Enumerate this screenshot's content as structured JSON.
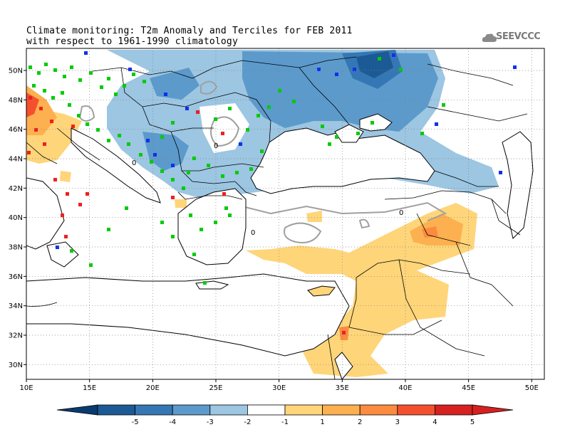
{
  "title": {
    "line1": "Climate monitoring: T2m Anomaly and Terciles for FEB 2011",
    "line2": "with respect to 1961-1990 climatology"
  },
  "logo": {
    "text": "SEEVCCC",
    "icon": "cloud-icon"
  },
  "map": {
    "lon_range": [
      10,
      51
    ],
    "lat_range": [
      29,
      51.5
    ],
    "lon_ticks": [
      {
        "v": 10,
        "label": "10E"
      },
      {
        "v": 15,
        "label": "15E"
      },
      {
        "v": 20,
        "label": "20E"
      },
      {
        "v": 25,
        "label": "25E"
      },
      {
        "v": 30,
        "label": "30E"
      },
      {
        "v": 35,
        "label": "35E"
      },
      {
        "v": 40,
        "label": "40E"
      },
      {
        "v": 45,
        "label": "45E"
      },
      {
        "v": 50,
        "label": "50E"
      }
    ],
    "lat_ticks": [
      {
        "v": 30,
        "label": "30N"
      },
      {
        "v": 32,
        "label": "32N"
      },
      {
        "v": 34,
        "label": "34N"
      },
      {
        "v": 36,
        "label": "36N"
      },
      {
        "v": 38,
        "label": "38N"
      },
      {
        "v": 40,
        "label": "40N"
      },
      {
        "v": 42,
        "label": "42N"
      },
      {
        "v": 44,
        "label": "44N"
      },
      {
        "v": 46,
        "label": "46N"
      },
      {
        "v": 48,
        "label": "48N"
      },
      {
        "v": 50,
        "label": "50N"
      }
    ],
    "contour_label": "0"
  },
  "colorbar": {
    "levels": [
      {
        "label": "-5",
        "color": "#1c5a95"
      },
      {
        "label": "-4",
        "color": "#3577b4"
      },
      {
        "label": "-3",
        "color": "#5c9acb"
      },
      {
        "label": "-2",
        "color": "#9cc6e2"
      },
      {
        "label": "-1",
        "color": "#ffffff"
      },
      {
        "label": "1",
        "color": "#ffd57a"
      },
      {
        "label": "2",
        "color": "#fdb04f"
      },
      {
        "label": "3",
        "color": "#fc8b40"
      },
      {
        "label": "4",
        "color": "#f5502e"
      },
      {
        "label": "5",
        "color": "#d62120"
      }
    ],
    "low_color": "#0b3a6e",
    "high_color": "#d62120"
  },
  "legend_colors": {
    "tercile_upper": "#ee2020",
    "tercile_middle": "#00cc00",
    "tercile_lower": "#1030ee"
  }
}
